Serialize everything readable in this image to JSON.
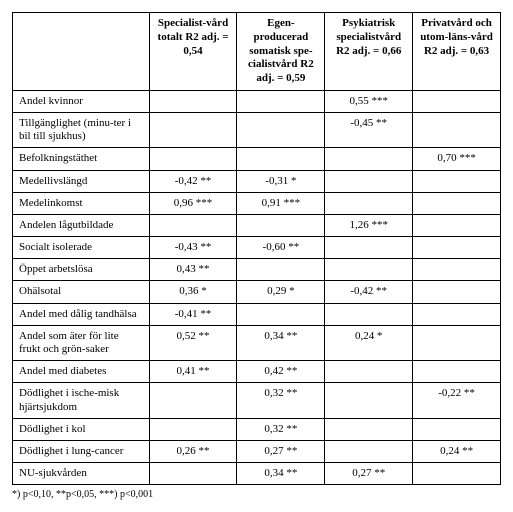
{
  "table": {
    "type": "table",
    "columns": [
      {
        "header": "",
        "width_pct": 28,
        "align": "left"
      },
      {
        "header": "Specialist-vård totalt R2 adj. = 0,54",
        "width_pct": 18,
        "align": "center"
      },
      {
        "header": "Egen-producerad somatisk spe-cialistvård R2 adj. = 0,59",
        "width_pct": 18,
        "align": "center"
      },
      {
        "header": "Psykiatrisk specialistvård R2 adj. = 0,66",
        "width_pct": 18,
        "align": "center"
      },
      {
        "header": "Privatvård och utom-läns-vård R2 adj. = 0,63",
        "width_pct": 18,
        "align": "center"
      }
    ],
    "rows": [
      {
        "label": "Andel kvinnor",
        "cells": [
          "",
          "",
          "0,55 ***",
          ""
        ]
      },
      {
        "label": "Tillgänglighet (minu-ter i bil till sjukhus)",
        "cells": [
          "",
          "",
          "-0,45 **",
          ""
        ]
      },
      {
        "label": "Befolkningstäthet",
        "cells": [
          "",
          "",
          "",
          "0,70 ***"
        ]
      },
      {
        "label": "Medellivslängd",
        "cells": [
          "-0,42 **",
          "-0,31 *",
          "",
          ""
        ]
      },
      {
        "label": "Medelinkomst",
        "cells": [
          "0,96 ***",
          "0,91 ***",
          "",
          ""
        ]
      },
      {
        "label": "Andelen lågutbildade",
        "cells": [
          "",
          "",
          "1,26 ***",
          ""
        ]
      },
      {
        "label": "Socialt isolerade",
        "cells": [
          "-0,43 **",
          "-0,60 **",
          "",
          ""
        ]
      },
      {
        "label": "Öppet arbetslösa",
        "cells": [
          "0,43 **",
          "",
          "",
          ""
        ]
      },
      {
        "label": "Ohälsotal",
        "cells": [
          "0,36 *",
          "0,29 *",
          "-0,42 **",
          ""
        ]
      },
      {
        "label": "Andel med dålig tandhälsa",
        "cells": [
          "-0,41 **",
          "",
          "",
          ""
        ]
      },
      {
        "label": "Andel som äter för lite frukt och grön-saker",
        "cells": [
          "0,52 **",
          "0,34 **",
          "0,24 *",
          ""
        ]
      },
      {
        "label": "Andel med diabetes",
        "cells": [
          "0,41 **",
          "0,42 **",
          "",
          ""
        ]
      },
      {
        "label": "Dödlighet i ische-misk hjärtsjukdom",
        "cells": [
          "",
          "0,32 **",
          "",
          "-0,22 **"
        ]
      },
      {
        "label": "Dödlighet i kol",
        "cells": [
          "",
          "0,32 **",
          "",
          ""
        ]
      },
      {
        "label": "Dödlighet i lung-cancer",
        "cells": [
          "0,26 **",
          "0,27 **",
          "",
          "0,24 **"
        ]
      },
      {
        "label": "NU-sjukvården",
        "cells": [
          "",
          "0,34 **",
          "0,27 **",
          ""
        ]
      }
    ],
    "border_color": "#000000",
    "background_color": "#ffffff",
    "font_family": "Georgia, Times New Roman, serif",
    "header_fontsize": 11,
    "cell_fontsize": 11
  },
  "footnote": "*) p<0,10, **p<0,05, ***) p<0,001"
}
